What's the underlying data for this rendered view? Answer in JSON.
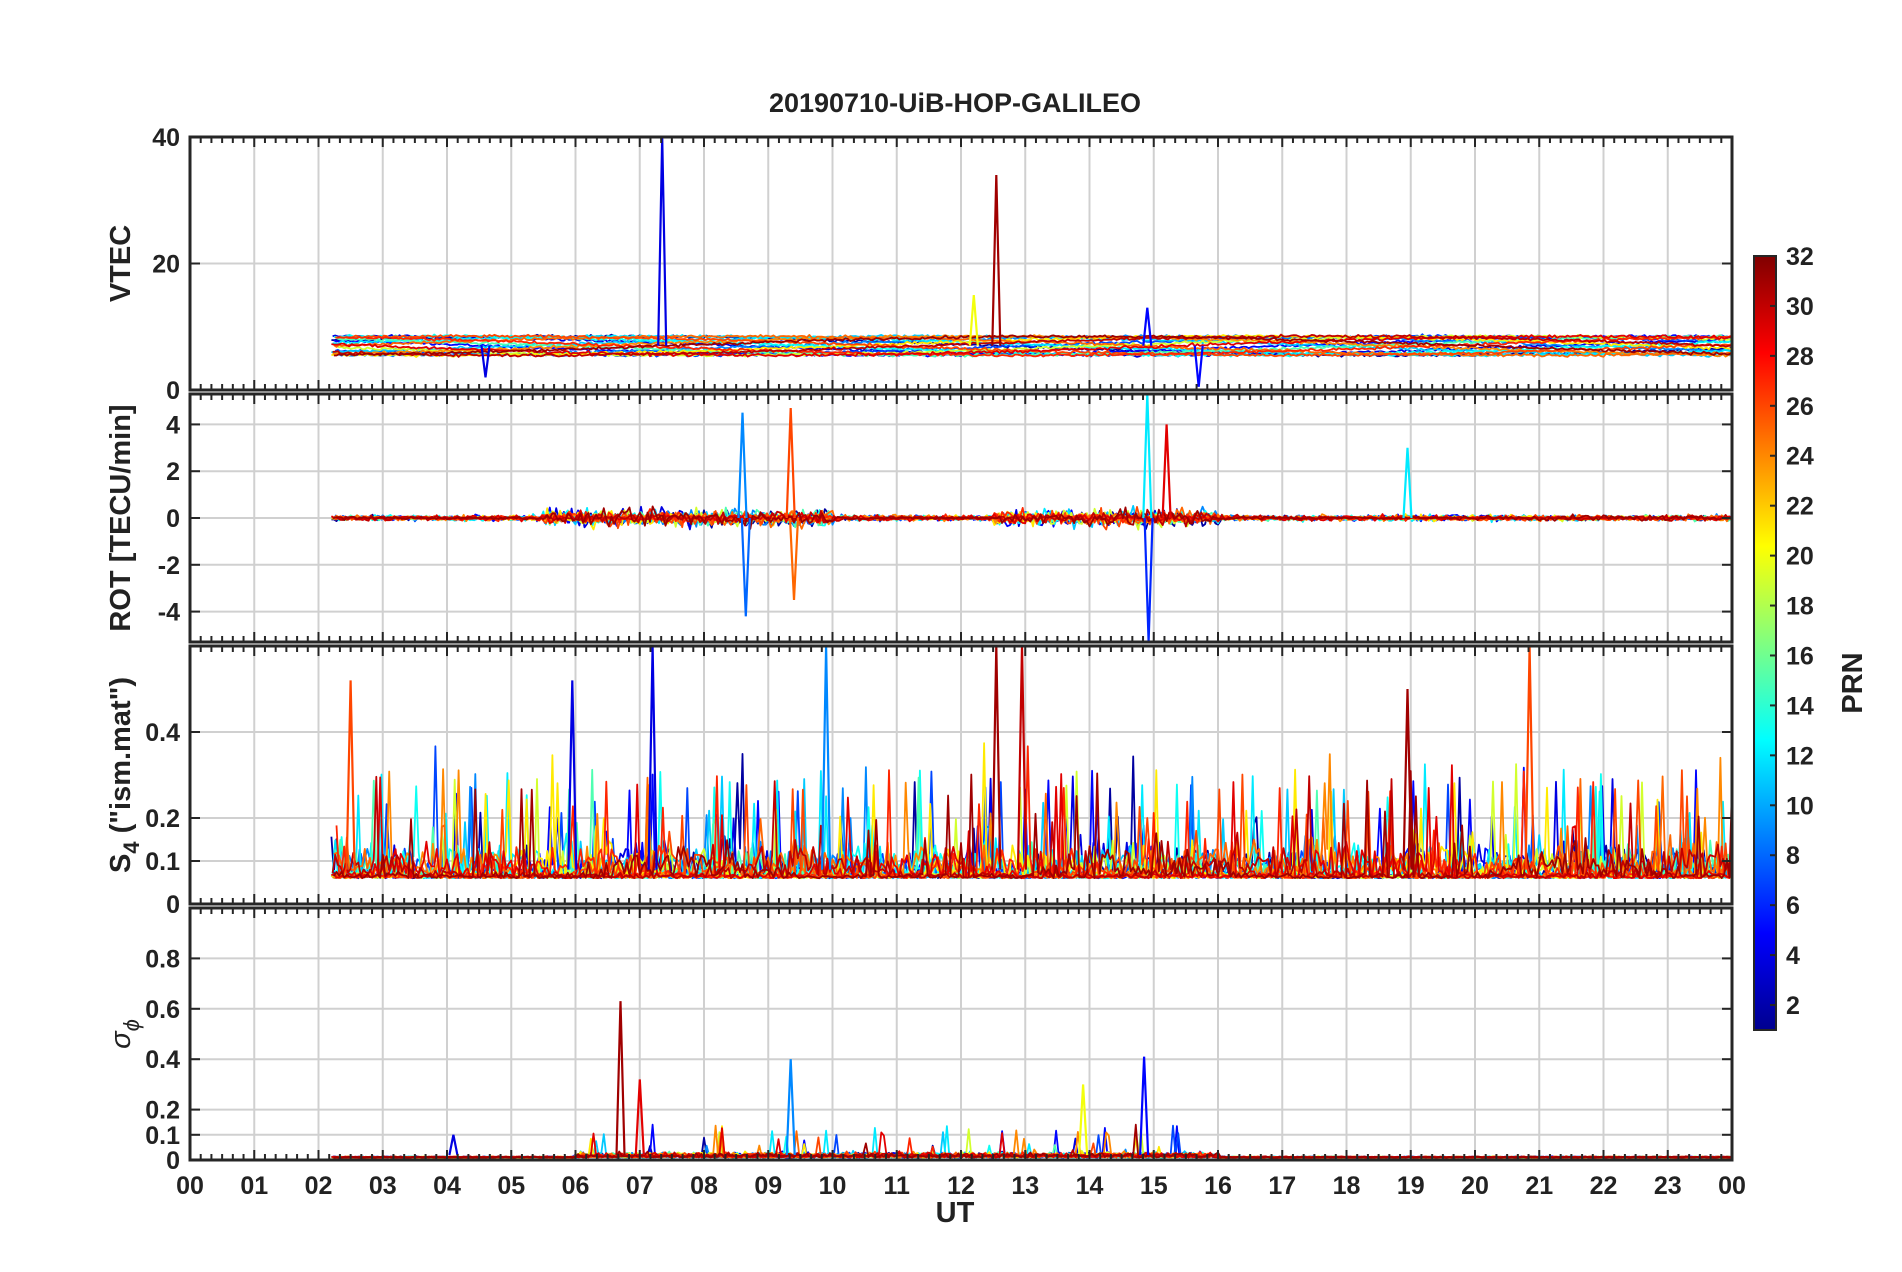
{
  "title": "20190710-UiB-HOP-GALILEO",
  "chart_data": {
    "type": "line",
    "title": "20190710-UiB-HOP-GALILEO",
    "xlabel": "UT",
    "x_tick_labels": [
      "00",
      "01",
      "02",
      "03",
      "04",
      "05",
      "06",
      "07",
      "08",
      "09",
      "10",
      "11",
      "12",
      "13",
      "14",
      "15",
      "16",
      "17",
      "18",
      "19",
      "20",
      "21",
      "22",
      "23",
      "00"
    ],
    "xlim_hours": [
      0,
      24
    ],
    "colorbar": {
      "label": "PRN",
      "range": [
        1,
        32
      ],
      "tick_labels": [
        "2",
        "4",
        "6",
        "8",
        "10",
        "12",
        "14",
        "16",
        "18",
        "20",
        "22",
        "24",
        "26",
        "28",
        "30",
        "32"
      ],
      "colormap": "jet",
      "colors": [
        "#00008F",
        "#0000FF",
        "#0080FF",
        "#00FFFF",
        "#80FF80",
        "#FFFF00",
        "#FF8000",
        "#FF0000",
        "#800000"
      ]
    },
    "panels": [
      {
        "id": "vtec",
        "ylabel": "VTEC",
        "ylim": [
          0,
          40
        ],
        "y_ticks": [
          0,
          20,
          40
        ],
        "y_tick_labels": [
          "0",
          "20",
          "40"
        ],
        "data_start_hour": 2.2,
        "baseline": 7,
        "spikes": [
          {
            "hour": 7.35,
            "value": 40,
            "prn": 4
          },
          {
            "hour": 12.55,
            "value": 34,
            "prn": 31
          },
          {
            "hour": 12.2,
            "value": 15,
            "prn": 20
          },
          {
            "hour": 14.9,
            "value": 13,
            "prn": 5
          },
          {
            "hour": 4.6,
            "value": 2,
            "prn": 4
          },
          {
            "hour": 15.7,
            "value": 0.5,
            "prn": 5
          }
        ]
      },
      {
        "id": "rot",
        "ylabel": "ROT [TECU/min]",
        "ylim": [
          -5.3,
          5.3
        ],
        "y_ticks": [
          -4,
          -2,
          0,
          2,
          4
        ],
        "y_tick_labels": [
          "-4",
          "-2",
          "0",
          "2",
          "4"
        ],
        "data_start_hour": 2.2,
        "baseline": 0,
        "spikes": [
          {
            "hour": 8.6,
            "value": 4.5,
            "prn": 9
          },
          {
            "hour": 8.65,
            "value": -4.2,
            "prn": 8
          },
          {
            "hour": 9.35,
            "value": 4.7,
            "prn": 26
          },
          {
            "hour": 9.4,
            "value": -3.5,
            "prn": 25
          },
          {
            "hour": 14.9,
            "value": 5.3,
            "prn": 12
          },
          {
            "hour": 14.92,
            "value": -5.3,
            "prn": 6
          },
          {
            "hour": 15.2,
            "value": 4.0,
            "prn": 29
          },
          {
            "hour": 18.95,
            "value": 3.0,
            "prn": 12
          }
        ]
      },
      {
        "id": "s4",
        "ylabel_main": "S",
        "ylabel_sub": "4",
        "ylabel_rest": " (\"ism.mat\")",
        "ylim": [
          0,
          0.6
        ],
        "y_ticks": [
          0,
          0.1,
          0.2,
          0.4
        ],
        "y_tick_labels": [
          "0",
          "0.1",
          "0.2",
          "0.4"
        ],
        "data_start_hour": 2.2,
        "baseline": 0.08,
        "spikes": [
          {
            "hour": 7.2,
            "value": 0.6,
            "prn": 4
          },
          {
            "hour": 9.9,
            "value": 0.6,
            "prn": 9
          },
          {
            "hour": 12.55,
            "value": 0.6,
            "prn": 31
          },
          {
            "hour": 12.95,
            "value": 0.6,
            "prn": 30
          },
          {
            "hour": 20.85,
            "value": 0.6,
            "prn": 26
          },
          {
            "hour": 5.95,
            "value": 0.52,
            "prn": 4
          },
          {
            "hour": 2.5,
            "value": 0.52,
            "prn": 26
          },
          {
            "hour": 18.95,
            "value": 0.5,
            "prn": 31
          }
        ]
      },
      {
        "id": "sigma_phi",
        "ylabel_main": "σ",
        "ylabel_sub": "ϕ",
        "ylim": [
          0,
          1
        ],
        "y_ticks": [
          0,
          0.1,
          0.2,
          0.4,
          0.6,
          0.8
        ],
        "y_tick_labels": [
          "0",
          "0.1",
          "0.2",
          "0.4",
          "0.6",
          "0.8"
        ],
        "data_start_hour": 2.2,
        "baseline": 0.02,
        "spikes": [
          {
            "hour": 6.7,
            "value": 0.63,
            "prn": 31
          },
          {
            "hour": 14.85,
            "value": 0.41,
            "prn": 5
          },
          {
            "hour": 9.35,
            "value": 0.4,
            "prn": 9
          },
          {
            "hour": 13.9,
            "value": 0.3,
            "prn": 20
          },
          {
            "hour": 7.0,
            "value": 0.32,
            "prn": 29
          },
          {
            "hour": 4.1,
            "value": 0.1,
            "prn": 4
          }
        ]
      }
    ]
  }
}
